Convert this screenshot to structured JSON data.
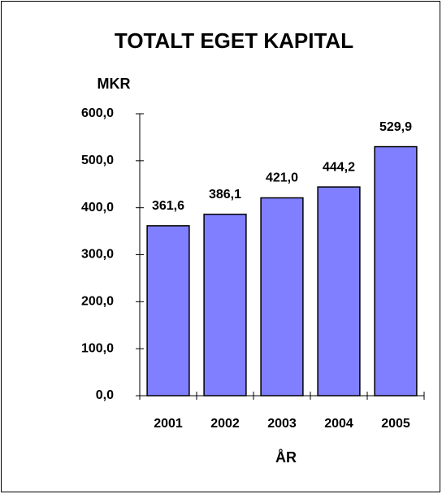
{
  "chart_data": {
    "type": "bar",
    "title": "TOTALT EGET KAPITAL",
    "y_label": "MKR",
    "x_label": "ÅR",
    "categories": [
      "2001",
      "2002",
      "2003",
      "2004",
      "2005"
    ],
    "values": [
      361.6,
      386.1,
      421.0,
      444.2,
      529.9
    ],
    "value_labels": [
      "361,6",
      "386,1",
      "421,0",
      "444,2",
      "529,9"
    ],
    "color": "#7f7fff",
    "ylim": [
      0,
      600
    ],
    "yticks": [
      {
        "value": 0,
        "label": "0,0"
      },
      {
        "value": 100,
        "label": "100,0"
      },
      {
        "value": 200,
        "label": "200,0"
      },
      {
        "value": 300,
        "label": "300,0"
      },
      {
        "value": 400,
        "label": "400,0"
      },
      {
        "value": 500,
        "label": "500,0"
      },
      {
        "value": 600,
        "label": "600,0"
      }
    ],
    "grid": false
  }
}
